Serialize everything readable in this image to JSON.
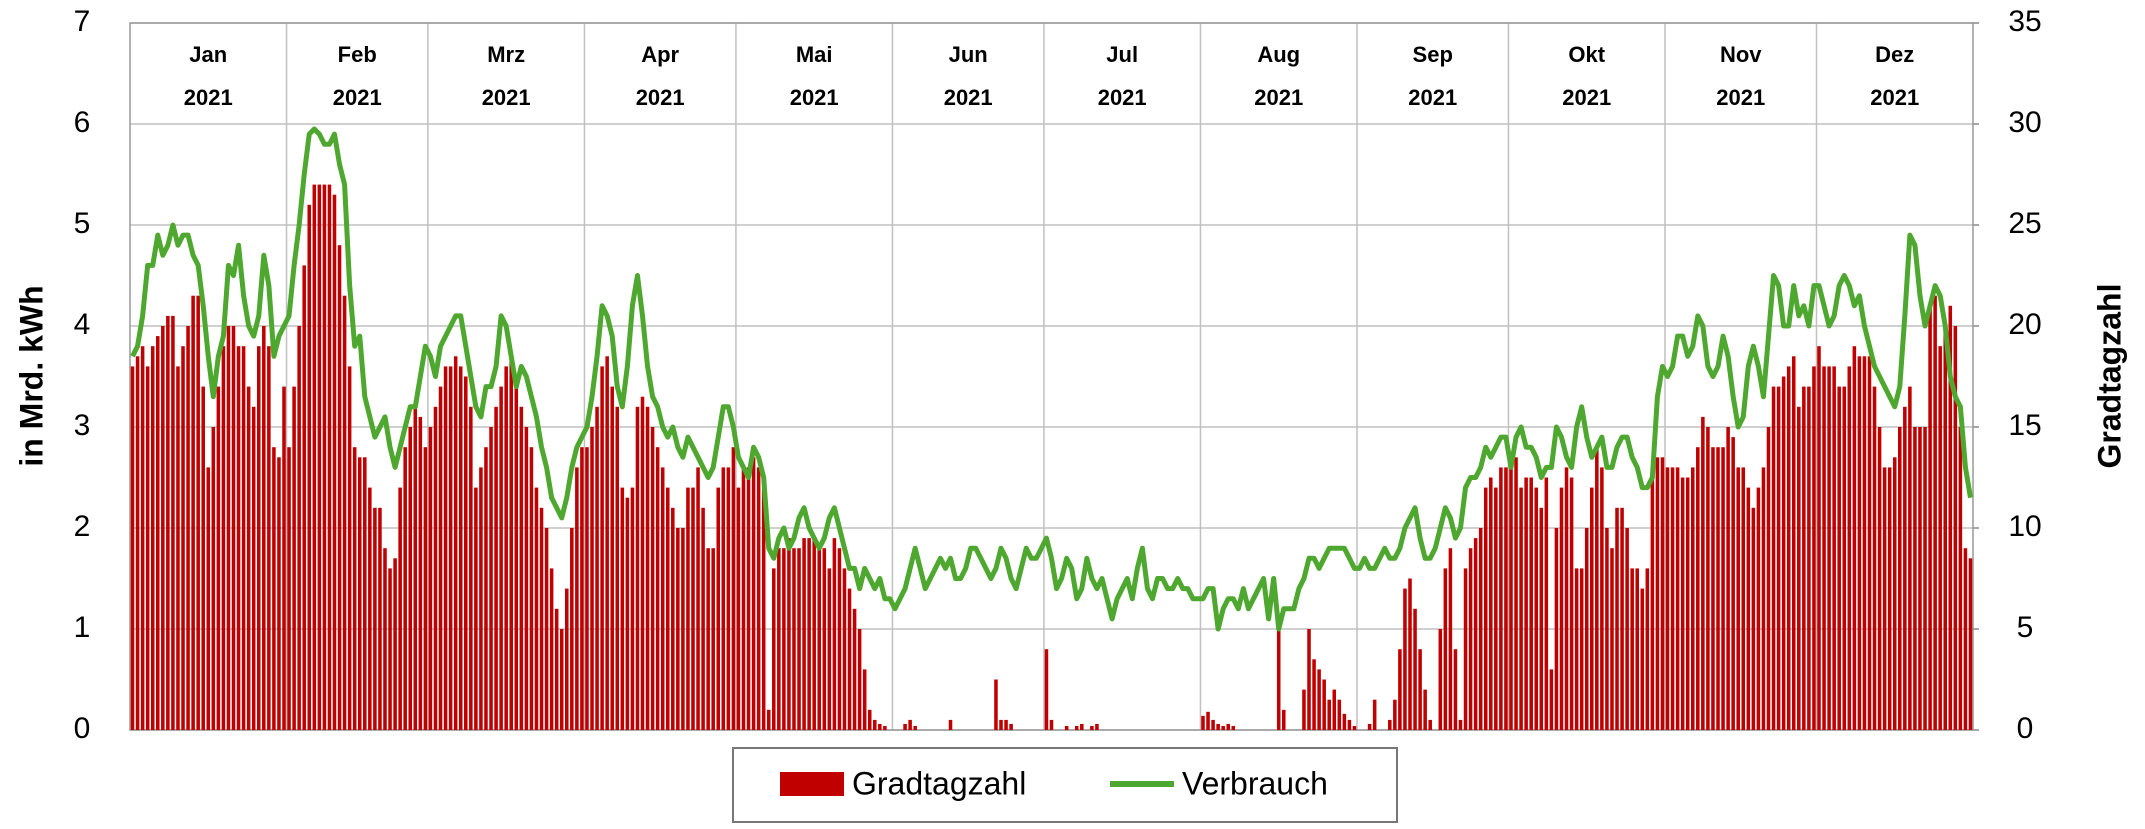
{
  "chart_data": {
    "type": "combo",
    "y_label": "in Mrd. kWh",
    "y2_label": "Gradtagzahl",
    "categories": [
      "Jan",
      "Feb",
      "Mrz",
      "Apr",
      "Mai",
      "Jun",
      "Jul",
      "Aug",
      "Sep",
      "Okt",
      "Nov",
      "Dez"
    ],
    "category_years": [
      "2021",
      "2021",
      "2021",
      "2021",
      "2021",
      "2021",
      "2021",
      "2021",
      "2021",
      "2021",
      "2021",
      "2021"
    ],
    "ylim": [
      0,
      7
    ],
    "yticks": [
      0,
      1,
      2,
      3,
      4,
      5,
      6,
      7
    ],
    "y2lim": [
      0,
      35
    ],
    "y2ticks": [
      0,
      5,
      10,
      15,
      20,
      25,
      30,
      35
    ],
    "grid": true,
    "legend": "bottom",
    "series": [
      {
        "name": "Gradtagzahl",
        "type": "bar",
        "axis": "y2",
        "color": "#c00000",
        "values": [
          [
            18,
            18.5,
            19,
            18,
            19,
            19.5,
            20,
            20.5,
            20.5,
            18,
            19,
            20,
            21.5,
            21.5,
            17,
            13,
            15,
            17,
            19,
            20,
            20,
            19,
            19,
            17,
            16,
            19,
            20,
            19,
            14,
            13.5,
            17
          ],
          [
            14,
            17,
            20,
            23,
            26,
            27,
            27,
            27,
            27,
            26.5,
            24,
            21.5,
            18,
            14,
            13.5,
            13.5,
            12,
            11,
            11,
            9,
            8,
            8.5,
            12,
            14,
            15,
            16,
            15.5,
            14
          ],
          [
            15,
            16,
            17,
            18,
            18,
            18.5,
            18,
            17.5,
            16,
            12,
            13,
            14,
            15,
            16,
            17,
            18,
            18.5,
            17,
            16,
            15,
            14,
            12,
            11,
            10,
            8,
            6,
            5,
            7,
            10,
            13,
            14
          ],
          [
            14,
            15,
            16,
            18,
            18.5,
            17,
            16,
            12,
            11.5,
            12,
            16,
            16.5,
            16,
            15,
            14,
            13,
            12,
            11,
            10,
            10,
            12,
            12,
            13,
            11,
            9,
            9,
            12,
            13,
            13,
            14
          ],
          [
            12,
            13,
            13,
            13.5,
            13,
            12,
            1,
            8,
            9,
            9,
            9.5,
            9,
            9,
            9.5,
            9.5,
            9.5,
            9,
            9,
            8,
            9.5,
            9,
            8,
            7,
            6,
            5,
            3,
            1,
            0.5,
            0.3,
            0.2,
            0
          ],
          [
            0,
            0,
            0.3,
            0.5,
            0.2,
            0,
            0,
            0,
            0,
            0,
            0,
            0.5,
            0,
            0,
            0,
            0,
            0,
            0,
            0,
            0,
            2.5,
            0.5,
            0.5,
            0.3,
            0,
            0,
            0,
            0,
            0,
            0
          ],
          [
            4,
            0.5,
            0,
            0,
            0.2,
            0,
            0.2,
            0.3,
            0,
            0.2,
            0.3,
            0,
            0,
            0,
            0,
            0,
            0,
            0,
            0,
            0,
            0,
            0,
            0,
            0,
            0,
            0,
            0,
            0,
            0,
            0,
            0
          ],
          [
            0.7,
            0.9,
            0.5,
            0.3,
            0.2,
            0.3,
            0.2,
            0,
            0,
            0,
            0,
            0,
            0,
            0,
            0,
            5,
            1,
            0,
            0,
            0,
            2,
            5,
            3.5,
            3,
            2.5,
            1.5,
            2,
            1.5,
            0.8,
            0.5,
            0.2
          ],
          [
            0,
            0,
            0.3,
            1.5,
            0,
            0,
            0.5,
            1.5,
            4,
            7,
            7.5,
            6,
            4,
            2,
            0.5,
            0,
            5,
            8,
            9,
            4,
            0.5,
            8,
            9,
            9.5,
            10,
            12,
            12.5,
            12,
            13,
            13
          ],
          [
            13,
            13.5,
            12,
            12.5,
            12.5,
            12,
            11,
            12.5,
            3,
            10,
            12,
            13,
            12.5,
            8,
            8,
            10,
            12,
            14,
            13,
            10,
            9,
            11,
            11,
            10,
            8,
            8,
            7,
            8,
            13,
            13.5,
            13.5
          ],
          [
            13,
            13,
            13,
            12.5,
            12.5,
            13,
            14,
            15.5,
            15,
            14,
            14,
            14,
            15,
            14.5,
            13,
            13,
            12,
            11,
            12,
            13,
            15,
            17,
            17,
            17.5,
            18,
            18.5,
            16,
            17,
            17,
            18
          ],
          [
            19,
            18,
            18,
            18,
            17,
            17,
            18,
            19,
            18.5,
            18.5,
            18.5,
            17,
            15,
            13,
            13,
            13.5,
            15,
            16,
            17,
            15,
            15,
            15,
            21,
            21.5,
            19,
            20,
            21,
            20,
            15,
            9,
            8.5
          ]
        ]
      },
      {
        "name": "Verbrauch",
        "type": "line",
        "color": "#4ea72e",
        "values": [
          [
            3.7,
            3.8,
            4.1,
            4.6,
            4.6,
            4.9,
            4.7,
            4.8,
            5.0,
            4.8,
            4.9,
            4.9,
            4.7,
            4.6,
            4.2,
            3.7,
            3.3,
            3.7,
            3.9,
            4.6,
            4.5,
            4.8,
            4.3,
            4.0,
            3.9,
            4.1,
            4.7,
            4.4,
            3.7,
            3.9,
            4.0
          ],
          [
            4.1,
            4.6,
            5.0,
            5.5,
            5.9,
            5.95,
            5.9,
            5.8,
            5.8,
            5.9,
            5.6,
            5.4,
            4.4,
            3.8,
            3.9,
            3.3,
            3.1,
            2.9,
            3.0,
            3.1,
            2.8,
            2.6,
            2.8,
            3.0,
            3.2,
            3.2,
            3.5,
            3.8
          ],
          [
            3.7,
            3.5,
            3.8,
            3.9,
            4.0,
            4.1,
            4.1,
            3.8,
            3.5,
            3.2,
            3.1,
            3.4,
            3.4,
            3.6,
            4.1,
            4.0,
            3.7,
            3.4,
            3.6,
            3.5,
            3.3,
            3.1,
            2.8,
            2.6,
            2.3,
            2.2,
            2.1,
            2.3,
            2.6,
            2.8,
            2.9
          ],
          [
            3.0,
            3.3,
            3.7,
            4.2,
            4.1,
            3.9,
            3.4,
            3.2,
            3.6,
            4.2,
            4.5,
            4.1,
            3.6,
            3.3,
            3.2,
            3.0,
            2.9,
            3.0,
            2.8,
            2.7,
            2.9,
            2.8,
            2.7,
            2.6,
            2.5,
            2.6,
            2.9,
            3.2,
            3.2,
            3.0
          ],
          [
            2.7,
            2.6,
            2.5,
            2.8,
            2.7,
            2.5,
            1.8,
            1.7,
            1.9,
            2.0,
            1.8,
            1.9,
            2.1,
            2.2,
            2.0,
            1.9,
            1.8,
            1.9,
            2.1,
            2.2,
            2.0,
            1.8,
            1.6,
            1.6,
            1.4,
            1.6,
            1.5,
            1.4,
            1.5,
            1.3,
            1.3
          ],
          [
            1.2,
            1.3,
            1.4,
            1.6,
            1.8,
            1.6,
            1.4,
            1.5,
            1.6,
            1.7,
            1.6,
            1.7,
            1.5,
            1.5,
            1.6,
            1.8,
            1.8,
            1.7,
            1.6,
            1.5,
            1.6,
            1.8,
            1.7,
            1.5,
            1.4,
            1.6,
            1.8,
            1.7,
            1.7,
            1.8
          ],
          [
            1.9,
            1.7,
            1.4,
            1.5,
            1.7,
            1.6,
            1.3,
            1.4,
            1.7,
            1.5,
            1.4,
            1.5,
            1.3,
            1.1,
            1.3,
            1.4,
            1.5,
            1.3,
            1.6,
            1.8,
            1.4,
            1.3,
            1.5,
            1.5,
            1.4,
            1.4,
            1.5,
            1.4,
            1.4,
            1.3,
            1.3
          ],
          [
            1.3,
            1.4,
            1.4,
            1.0,
            1.2,
            1.3,
            1.3,
            1.2,
            1.4,
            1.2,
            1.3,
            1.4,
            1.5,
            1.1,
            1.5,
            1.0,
            1.2,
            1.2,
            1.2,
            1.4,
            1.5,
            1.7,
            1.7,
            1.6,
            1.7,
            1.8,
            1.8,
            1.8,
            1.8,
            1.7,
            1.6
          ],
          [
            1.6,
            1.7,
            1.6,
            1.6,
            1.7,
            1.8,
            1.7,
            1.7,
            1.8,
            2.0,
            2.1,
            2.2,
            1.9,
            1.7,
            1.7,
            1.8,
            2.0,
            2.2,
            2.1,
            1.9,
            2.0,
            2.4,
            2.5,
            2.5,
            2.6,
            2.8,
            2.7,
            2.8,
            2.9,
            2.9
          ],
          [
            2.6,
            2.9,
            3.0,
            2.8,
            2.8,
            2.7,
            2.5,
            2.6,
            2.6,
            3.0,
            2.9,
            2.7,
            2.6,
            3.0,
            3.2,
            2.9,
            2.7,
            2.8,
            2.9,
            2.6,
            2.6,
            2.8,
            2.9,
            2.9,
            2.7,
            2.6,
            2.4,
            2.4,
            2.5,
            3.3,
            3.6
          ],
          [
            3.5,
            3.6,
            3.9,
            3.9,
            3.7,
            3.8,
            4.1,
            4.0,
            3.6,
            3.5,
            3.6,
            3.9,
            3.7,
            3.3,
            3.0,
            3.1,
            3.6,
            3.8,
            3.6,
            3.3,
            3.9,
            4.5,
            4.4,
            4.0,
            4.0,
            4.4,
            4.1,
            4.2,
            4.0,
            4.4
          ],
          [
            4.4,
            4.2,
            4.0,
            4.1,
            4.4,
            4.5,
            4.4,
            4.2,
            4.3,
            4.0,
            3.8,
            3.6,
            3.5,
            3.4,
            3.3,
            3.2,
            3.4,
            4.1,
            4.9,
            4.8,
            4.3,
            4.0,
            4.2,
            4.4,
            4.3,
            4.0,
            3.5,
            3.3,
            3.2,
            2.6,
            2.3
          ]
        ]
      }
    ]
  }
}
